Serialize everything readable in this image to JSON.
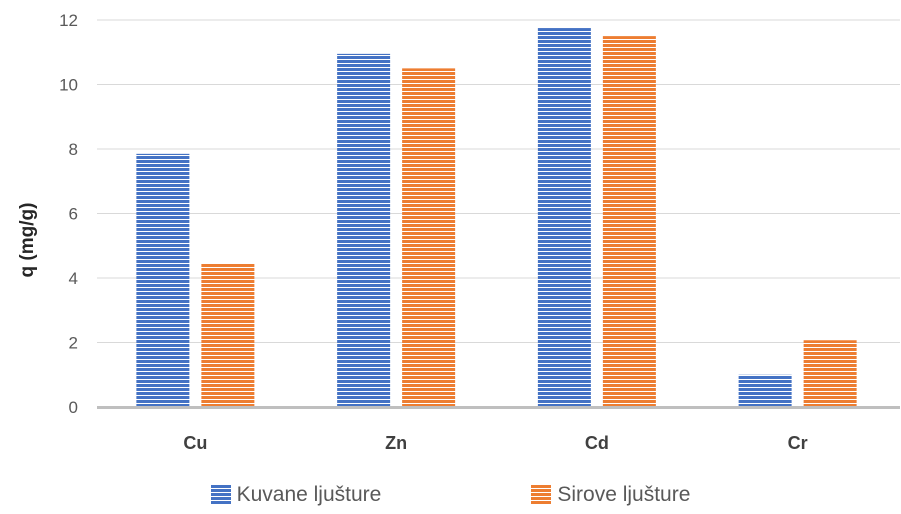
{
  "chart_data": {
    "type": "bar",
    "categories": [
      "Cu",
      "Zn",
      "Cd",
      "Cr"
    ],
    "series": [
      {
        "name": "Kuvane ljušture",
        "values": [
          7.85,
          10.95,
          11.75,
          1.0
        ],
        "color": "#4472C4"
      },
      {
        "name": "Sirove ljušture",
        "values": [
          4.45,
          10.5,
          11.5,
          2.07
        ],
        "color": "#ED7D31"
      }
    ],
    "title": "",
    "xlabel": "",
    "ylabel": "q (mg/g)",
    "ylim": [
      0,
      12
    ],
    "yticks": [
      0,
      2,
      4,
      6,
      8,
      10,
      12
    ],
    "grid": true,
    "legend_position": "bottom"
  }
}
